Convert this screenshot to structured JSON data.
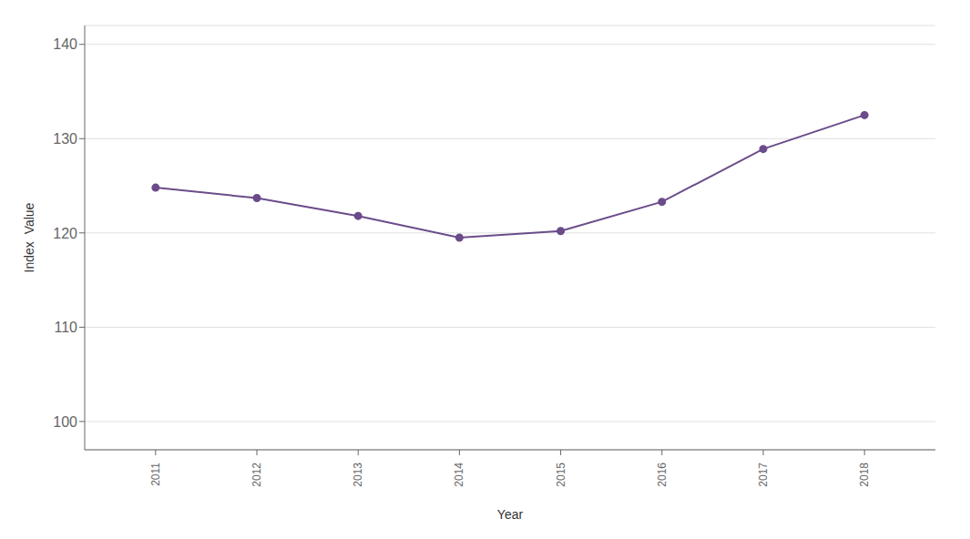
{
  "chart_data": {
    "type": "line",
    "x": [
      2011,
      2012,
      2013,
      2014,
      2015,
      2016,
      2017,
      2018
    ],
    "values": [
      124.8,
      123.7,
      121.8,
      119.5,
      120.2,
      123.3,
      128.9,
      132.5
    ],
    "color": "#6b4c8a",
    "marker": "circle",
    "xlabel": "Year",
    "ylabel": "Index  Value",
    "xlim": [
      2010.3,
      2018.7
    ],
    "xticks": [
      2011,
      2012,
      2013,
      2014,
      2015,
      2016,
      2017,
      2018
    ],
    "ylim": [
      97,
      142
    ],
    "yticks": [
      100,
      110,
      120,
      130,
      140
    ],
    "grid": true
  }
}
